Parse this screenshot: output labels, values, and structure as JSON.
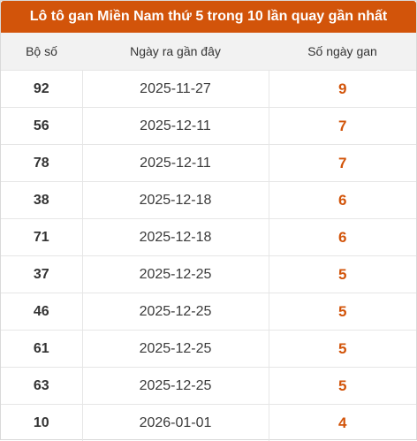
{
  "title": "Lô tô gan Miền Nam thứ 5 trong 10 lần quay gần nhất",
  "columns": [
    "Bộ số",
    "Ngày ra gần đây",
    "Số ngày gan"
  ],
  "rows": [
    {
      "number": "92",
      "date": "2025-11-27",
      "gan": "9"
    },
    {
      "number": "56",
      "date": "2025-12-11",
      "gan": "7"
    },
    {
      "number": "78",
      "date": "2025-12-11",
      "gan": "7"
    },
    {
      "number": "38",
      "date": "2025-12-18",
      "gan": "6"
    },
    {
      "number": "71",
      "date": "2025-12-18",
      "gan": "6"
    },
    {
      "number": "37",
      "date": "2025-12-25",
      "gan": "5"
    },
    {
      "number": "46",
      "date": "2025-12-25",
      "gan": "5"
    },
    {
      "number": "61",
      "date": "2025-12-25",
      "gan": "5"
    },
    {
      "number": "63",
      "date": "2025-12-25",
      "gan": "5"
    },
    {
      "number": "10",
      "date": "2026-01-01",
      "gan": "4"
    }
  ],
  "colors": {
    "accent": "#d2540a",
    "header_bg": "#f2f2f2",
    "border": "#e6e6e6"
  }
}
